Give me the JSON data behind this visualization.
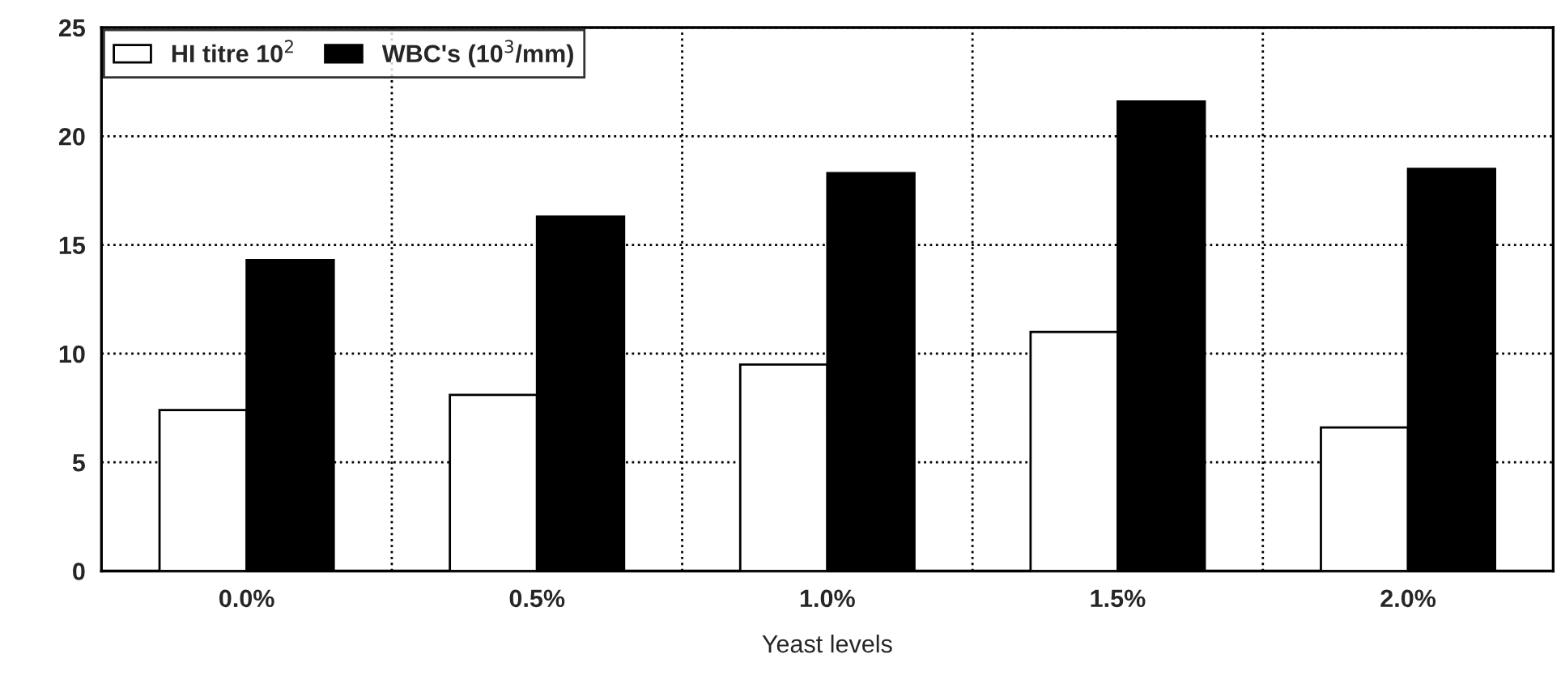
{
  "chart_data": {
    "type": "bar",
    "xlabel": "Yeast levels",
    "categories": [
      "0.0%",
      "0.5%",
      "1.0%",
      "1.5%",
      "2.0%"
    ],
    "series": [
      {
        "name": "HI titre 10$^{2}$",
        "color": "#ffffff",
        "values": [
          7.4,
          8.1,
          9.5,
          11.0,
          6.6
        ]
      },
      {
        "name": "WBC's (10$^{3}$/mm)",
        "color": "#000000",
        "values": [
          14.3,
          16.3,
          18.3,
          21.6,
          18.5
        ]
      }
    ],
    "ylim": [
      0,
      25
    ],
    "yticks": [
      0,
      5,
      10,
      15,
      20,
      25
    ],
    "grid": true,
    "legend": "top left"
  }
}
